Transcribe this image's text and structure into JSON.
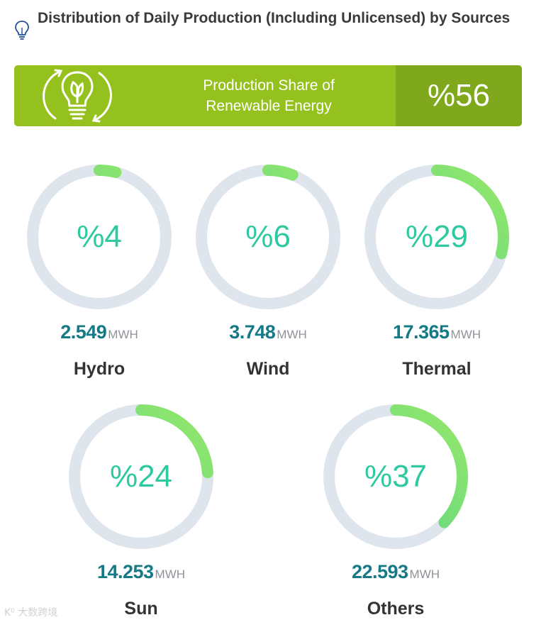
{
  "header": {
    "title": "Distribution of Daily Production (Including Unlicensed) by Sources"
  },
  "banner": {
    "label_line1": "Production Share of",
    "label_line2": "Renewable Energy",
    "value": "%56"
  },
  "sources": [
    {
      "name": "Hydro",
      "percent_label": "%4",
      "percent": 4,
      "amount": "2.549",
      "unit": "MWH"
    },
    {
      "name": "Wind",
      "percent_label": "%6",
      "percent": 6,
      "amount": "3.748",
      "unit": "MWH"
    },
    {
      "name": "Thermal",
      "percent_label": "%29",
      "percent": 29,
      "amount": "17.365",
      "unit": "MWH"
    },
    {
      "name": "Sun",
      "percent_label": "%24",
      "percent": 24,
      "amount": "14.253",
      "unit": "MWH"
    },
    {
      "name": "Others",
      "percent_label": "%37",
      "percent": 37,
      "amount": "22.593",
      "unit": "MWH"
    }
  ],
  "colors": {
    "banner_bg": "#95c11f",
    "banner_value_bg": "#7fa81d",
    "ring_track": "#dfe5ec",
    "ring_start": "#4fd18b",
    "ring_end": "#96e86a",
    "percent_text": "#2ec9a0",
    "amount_text": "#157a85"
  },
  "watermark": "K⁰ 大数跨境"
}
